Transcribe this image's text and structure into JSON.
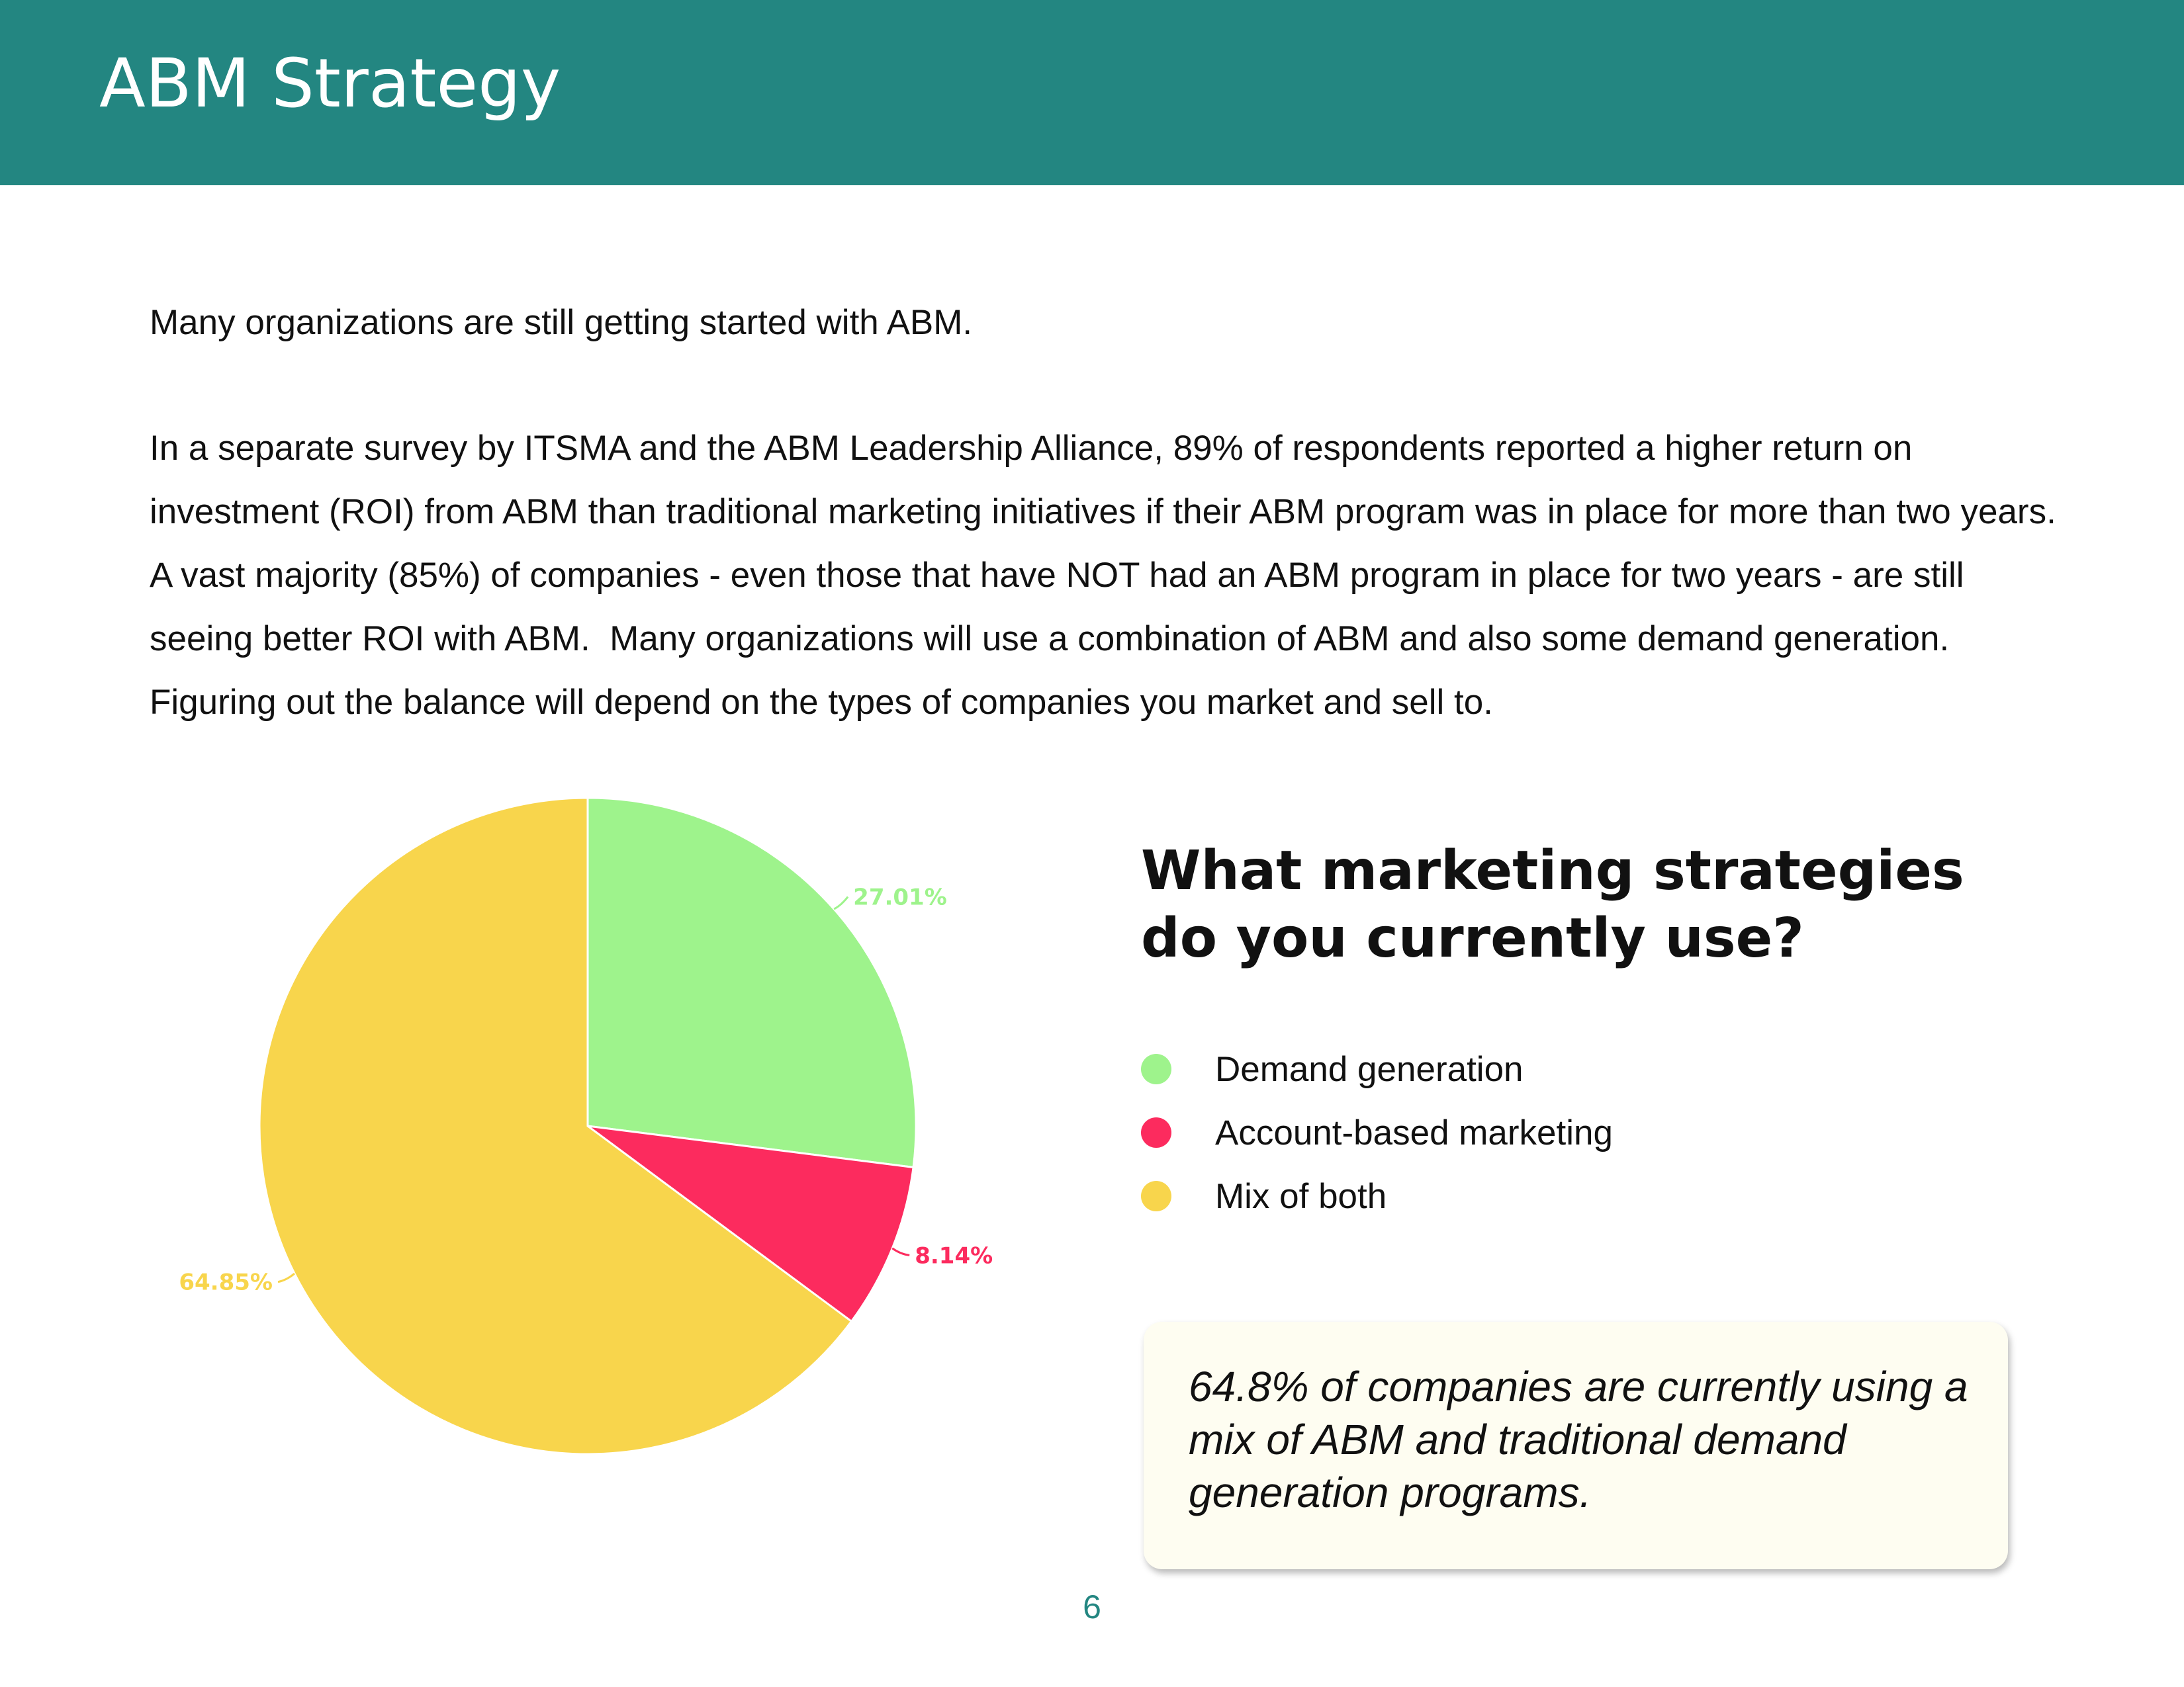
{
  "header": {
    "title": "ABM Strategy"
  },
  "intro": "Many organizations are still getting started with ABM.",
  "body_text": "In a separate survey by ITSMA and the ABM Leadership Alliance, 89% of respondents reported a higher return on investment (ROI) from ABM than traditional marketing initiatives if their ABM program was in place for more than two years. A vast majority (85%) of companies - even those that have NOT had an ABM program in place for two years - are still seeing better ROI with ABM.  Many organizations will use a combination of ABM and also some demand generation.  Figuring out the balance will depend on the types of companies you market and sell to.",
  "chart_data": {
    "type": "pie",
    "title": "What marketing strategies do you currently use?",
    "categories": [
      "Demand generation",
      "Account-based marketing",
      "Mix of both"
    ],
    "values": [
      27.01,
      8.14,
      64.85
    ],
    "labels": [
      "27.01%",
      "8.14%",
      "64.85%"
    ],
    "colors": [
      "#9ef38c",
      "#fc2b5e",
      "#f8d54c"
    ],
    "start_angle_deg": 0,
    "direction": "clockwise",
    "legend_position": "right"
  },
  "question": {
    "line1": "What marketing strategies",
    "line2": "do you currently use?"
  },
  "legend": {
    "items": [
      {
        "label": "Demand generation",
        "color": "#9ef38c"
      },
      {
        "label": "Account-based marketing",
        "color": "#fc2b5e"
      },
      {
        "label": "Mix of both",
        "color": "#f8d54c"
      }
    ]
  },
  "callout": {
    "text": "64.8% of companies are currently using a mix of ABM and traditional demand generation programs."
  },
  "page_number": "6",
  "colors": {
    "header_bg": "#238681",
    "header_text": "#ffffff",
    "callout_bg": "#fefdf1",
    "page_number": "#238681"
  }
}
